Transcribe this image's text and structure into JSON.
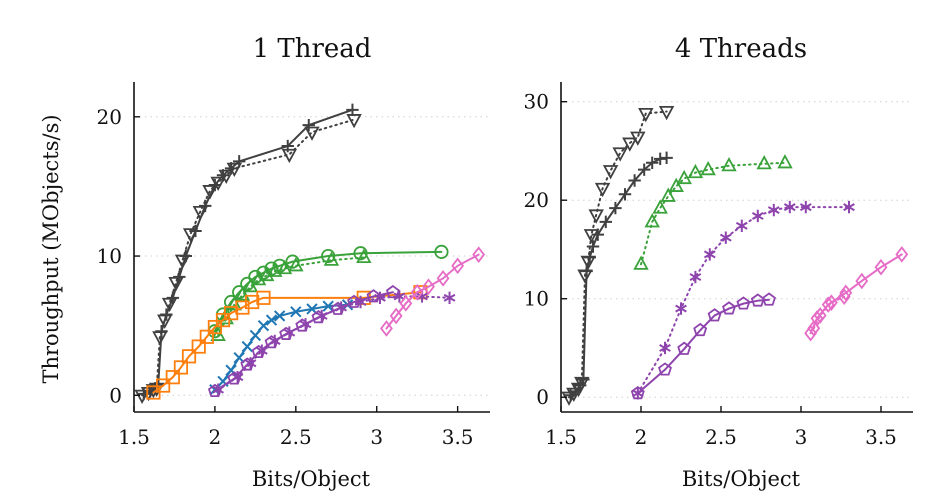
{
  "chart_data": [
    {
      "type": "line",
      "title": "1 Thread",
      "xlabel": "Bits/Object",
      "ylabel": "Throughput (MObjects/s)",
      "xlim": [
        1.5,
        3.7
      ],
      "ylim": [
        -1.2,
        22.5
      ],
      "xticks": [
        1.5,
        2,
        2.5,
        3,
        3.5
      ],
      "xtick_labels": [
        "1.5",
        "2",
        "2.5",
        "3",
        "3.5"
      ],
      "yticks": [
        0,
        10,
        20
      ],
      "ytick_labels": [
        "0",
        "10",
        "20"
      ],
      "grid": "horizontal-dotted",
      "series": [
        {
          "color": "#404040",
          "dash": "solid",
          "marker": "plus",
          "x": [
            1.56,
            1.6,
            1.63,
            1.65,
            1.67,
            1.7,
            1.74,
            1.78,
            1.82,
            1.88,
            1.94,
            2.0,
            2.05,
            2.1,
            2.15,
            2.45,
            2.58,
            2.85
          ],
          "y": [
            0.1,
            0.3,
            0.5,
            0.8,
            4.6,
            5.8,
            7.0,
            8.5,
            10.0,
            11.8,
            13.6,
            15.1,
            15.8,
            16.3,
            16.8,
            17.9,
            19.4,
            20.5
          ]
        },
        {
          "color": "#404040",
          "dash": "dotted",
          "marker": "tri-down",
          "x": [
            1.55,
            1.59,
            1.62,
            1.64,
            1.66,
            1.69,
            1.72,
            1.76,
            1.8,
            1.85,
            1.91,
            1.97,
            2.02,
            2.07,
            2.12,
            2.46,
            2.6,
            2.86
          ],
          "y": [
            0.0,
            0.2,
            0.4,
            0.5,
            4.2,
            5.4,
            6.6,
            8.1,
            9.7,
            11.6,
            13.2,
            14.7,
            15.3,
            15.8,
            16.3,
            17.3,
            18.9,
            19.8
          ]
        },
        {
          "color": "#3aa23a",
          "dash": "solid",
          "marker": "circle",
          "x": [
            2.0,
            2.05,
            2.1,
            2.15,
            2.2,
            2.25,
            2.3,
            2.35,
            2.4,
            2.48,
            2.7,
            2.9,
            3.4
          ],
          "y": [
            4.6,
            5.8,
            6.7,
            7.4,
            8.0,
            8.5,
            8.8,
            9.1,
            9.3,
            9.6,
            10.0,
            10.2,
            10.3
          ]
        },
        {
          "color": "#3aa23a",
          "dash": "dotted",
          "marker": "triangle",
          "x": [
            2.02,
            2.07,
            2.12,
            2.17,
            2.22,
            2.27,
            2.32,
            2.37,
            2.43,
            2.5,
            2.72,
            2.92
          ],
          "y": [
            4.3,
            5.5,
            6.5,
            7.2,
            7.8,
            8.3,
            8.6,
            8.9,
            9.1,
            9.3,
            9.7,
            9.9
          ]
        },
        {
          "color": "#ff7f0e",
          "dash": "solid",
          "marker": "square",
          "x": [
            1.62,
            1.68,
            1.74,
            1.79,
            1.84,
            1.9,
            1.95,
            2.0,
            2.05,
            2.1,
            2.17,
            2.23,
            2.3,
            2.92,
            3.27
          ],
          "y": [
            0.2,
            0.7,
            1.3,
            2.0,
            2.8,
            3.5,
            4.2,
            4.9,
            5.4,
            5.9,
            6.3,
            6.7,
            7.0,
            7.0,
            7.4
          ]
        },
        {
          "color": "#1f77b4",
          "dash": "solid",
          "marker": "cross",
          "x": [
            2.0,
            2.05,
            2.1,
            2.15,
            2.2,
            2.25,
            2.3,
            2.35,
            2.4,
            2.5,
            2.6,
            2.7,
            2.82
          ],
          "y": [
            0.4,
            1.0,
            1.8,
            2.7,
            3.5,
            4.3,
            5.0,
            5.4,
            5.7,
            6.0,
            6.2,
            6.4,
            6.5
          ]
        },
        {
          "color": "#8e44ad",
          "dash": "solid",
          "marker": "pentagon",
          "x": [
            2.0,
            2.12,
            2.2,
            2.27,
            2.35,
            2.44,
            2.54,
            2.64,
            2.76,
            2.86,
            2.98,
            3.1
          ],
          "y": [
            0.3,
            1.2,
            2.2,
            3.1,
            3.8,
            4.4,
            5.0,
            5.6,
            6.2,
            6.7,
            7.1,
            7.4
          ]
        },
        {
          "color": "#8e44ad",
          "dash": "dotted",
          "marker": "asterisk",
          "x": [
            2.02,
            2.14,
            2.22,
            2.29,
            2.37,
            2.46,
            2.56,
            2.66,
            2.78,
            2.9,
            3.02,
            3.14,
            3.28,
            3.45
          ],
          "y": [
            0.4,
            1.3,
            2.3,
            3.2,
            3.9,
            4.5,
            5.1,
            5.7,
            6.3,
            6.7,
            7.0,
            7.1,
            7.1,
            7.0
          ]
        },
        {
          "color": "#e66bc6",
          "dash": "solid",
          "marker": "diamond",
          "x": [
            3.06,
            3.12,
            3.18,
            3.25,
            3.32,
            3.41,
            3.5,
            3.63
          ],
          "y": [
            4.8,
            5.7,
            6.6,
            7.4,
            7.8,
            8.4,
            9.3,
            10.1
          ]
        }
      ]
    },
    {
      "type": "line",
      "title": "4 Threads",
      "xlabel": "Bits/Object",
      "ylabel": "",
      "xlim": [
        1.5,
        3.7
      ],
      "ylim": [
        -1.5,
        32
      ],
      "xticks": [
        1.5,
        2,
        2.5,
        3,
        3.5
      ],
      "xtick_labels": [
        "1.5",
        "2",
        "2.5",
        "3",
        "3.5"
      ],
      "yticks": [
        0,
        10,
        20,
        30
      ],
      "ytick_labels": [
        "0",
        "10",
        "20",
        "30"
      ],
      "grid": "horizontal-dotted",
      "series": [
        {
          "color": "#404040",
          "dash": "solid",
          "marker": "plus",
          "x": [
            1.56,
            1.59,
            1.62,
            1.64,
            1.66,
            1.68,
            1.7,
            1.73,
            1.78,
            1.84,
            1.9,
            1.96,
            2.02,
            2.07,
            2.12,
            2.16
          ],
          "y": [
            0.2,
            0.6,
            1.2,
            1.8,
            12.8,
            14.2,
            15.3,
            16.5,
            17.8,
            19.2,
            20.6,
            22.0,
            23.1,
            23.8,
            24.2,
            24.3
          ]
        },
        {
          "color": "#404040",
          "dash": "dotted",
          "marker": "tri-down",
          "x": [
            1.55,
            1.58,
            1.61,
            1.63,
            1.65,
            1.67,
            1.69,
            1.72,
            1.76,
            1.81,
            1.87,
            1.93,
            1.98,
            2.03,
            2.16
          ],
          "y": [
            0.0,
            0.4,
            0.9,
            1.5,
            12.4,
            13.8,
            16.5,
            18.5,
            21.2,
            23.0,
            24.8,
            25.8,
            26.4,
            28.8,
            29.0
          ]
        },
        {
          "color": "#3aa23a",
          "dash": "dotted",
          "marker": "triangle",
          "x": [
            2.0,
            2.07,
            2.12,
            2.17,
            2.22,
            2.27,
            2.34,
            2.42,
            2.55,
            2.77,
            2.9
          ],
          "y": [
            13.5,
            17.8,
            19.2,
            20.4,
            21.4,
            22.2,
            22.8,
            23.1,
            23.5,
            23.7,
            23.8
          ]
        },
        {
          "color": "#8e44ad",
          "dash": "dotted",
          "marker": "asterisk",
          "x": [
            1.98,
            2.15,
            2.25,
            2.34,
            2.43,
            2.53,
            2.63,
            2.73,
            2.83,
            2.93,
            3.03,
            3.3
          ],
          "y": [
            0.4,
            5.0,
            9.0,
            12.2,
            14.5,
            16.2,
            17.4,
            18.4,
            19.0,
            19.3,
            19.3,
            19.3
          ]
        },
        {
          "color": "#8e44ad",
          "dash": "solid",
          "marker": "pentagon",
          "x": [
            1.98,
            2.15,
            2.27,
            2.37,
            2.46,
            2.55,
            2.64,
            2.73,
            2.8
          ],
          "y": [
            0.4,
            2.8,
            4.9,
            6.8,
            8.3,
            9.0,
            9.5,
            9.8,
            9.9
          ]
        },
        {
          "color": "#e66bc6",
          "dash": "solid",
          "marker": "diamond",
          "x": [
            3.06,
            3.1,
            3.17,
            3.28,
            3.38,
            3.5,
            3.63
          ],
          "y": [
            6.5,
            8.0,
            9.4,
            10.6,
            11.8,
            13.2,
            14.5
          ]
        },
        {
          "color": "#e66bc6",
          "dash": "dotted",
          "marker": "diamond",
          "x": [
            3.08,
            3.12,
            3.19,
            3.27
          ],
          "y": [
            7.0,
            8.3,
            9.6,
            10.2
          ]
        }
      ]
    }
  ]
}
